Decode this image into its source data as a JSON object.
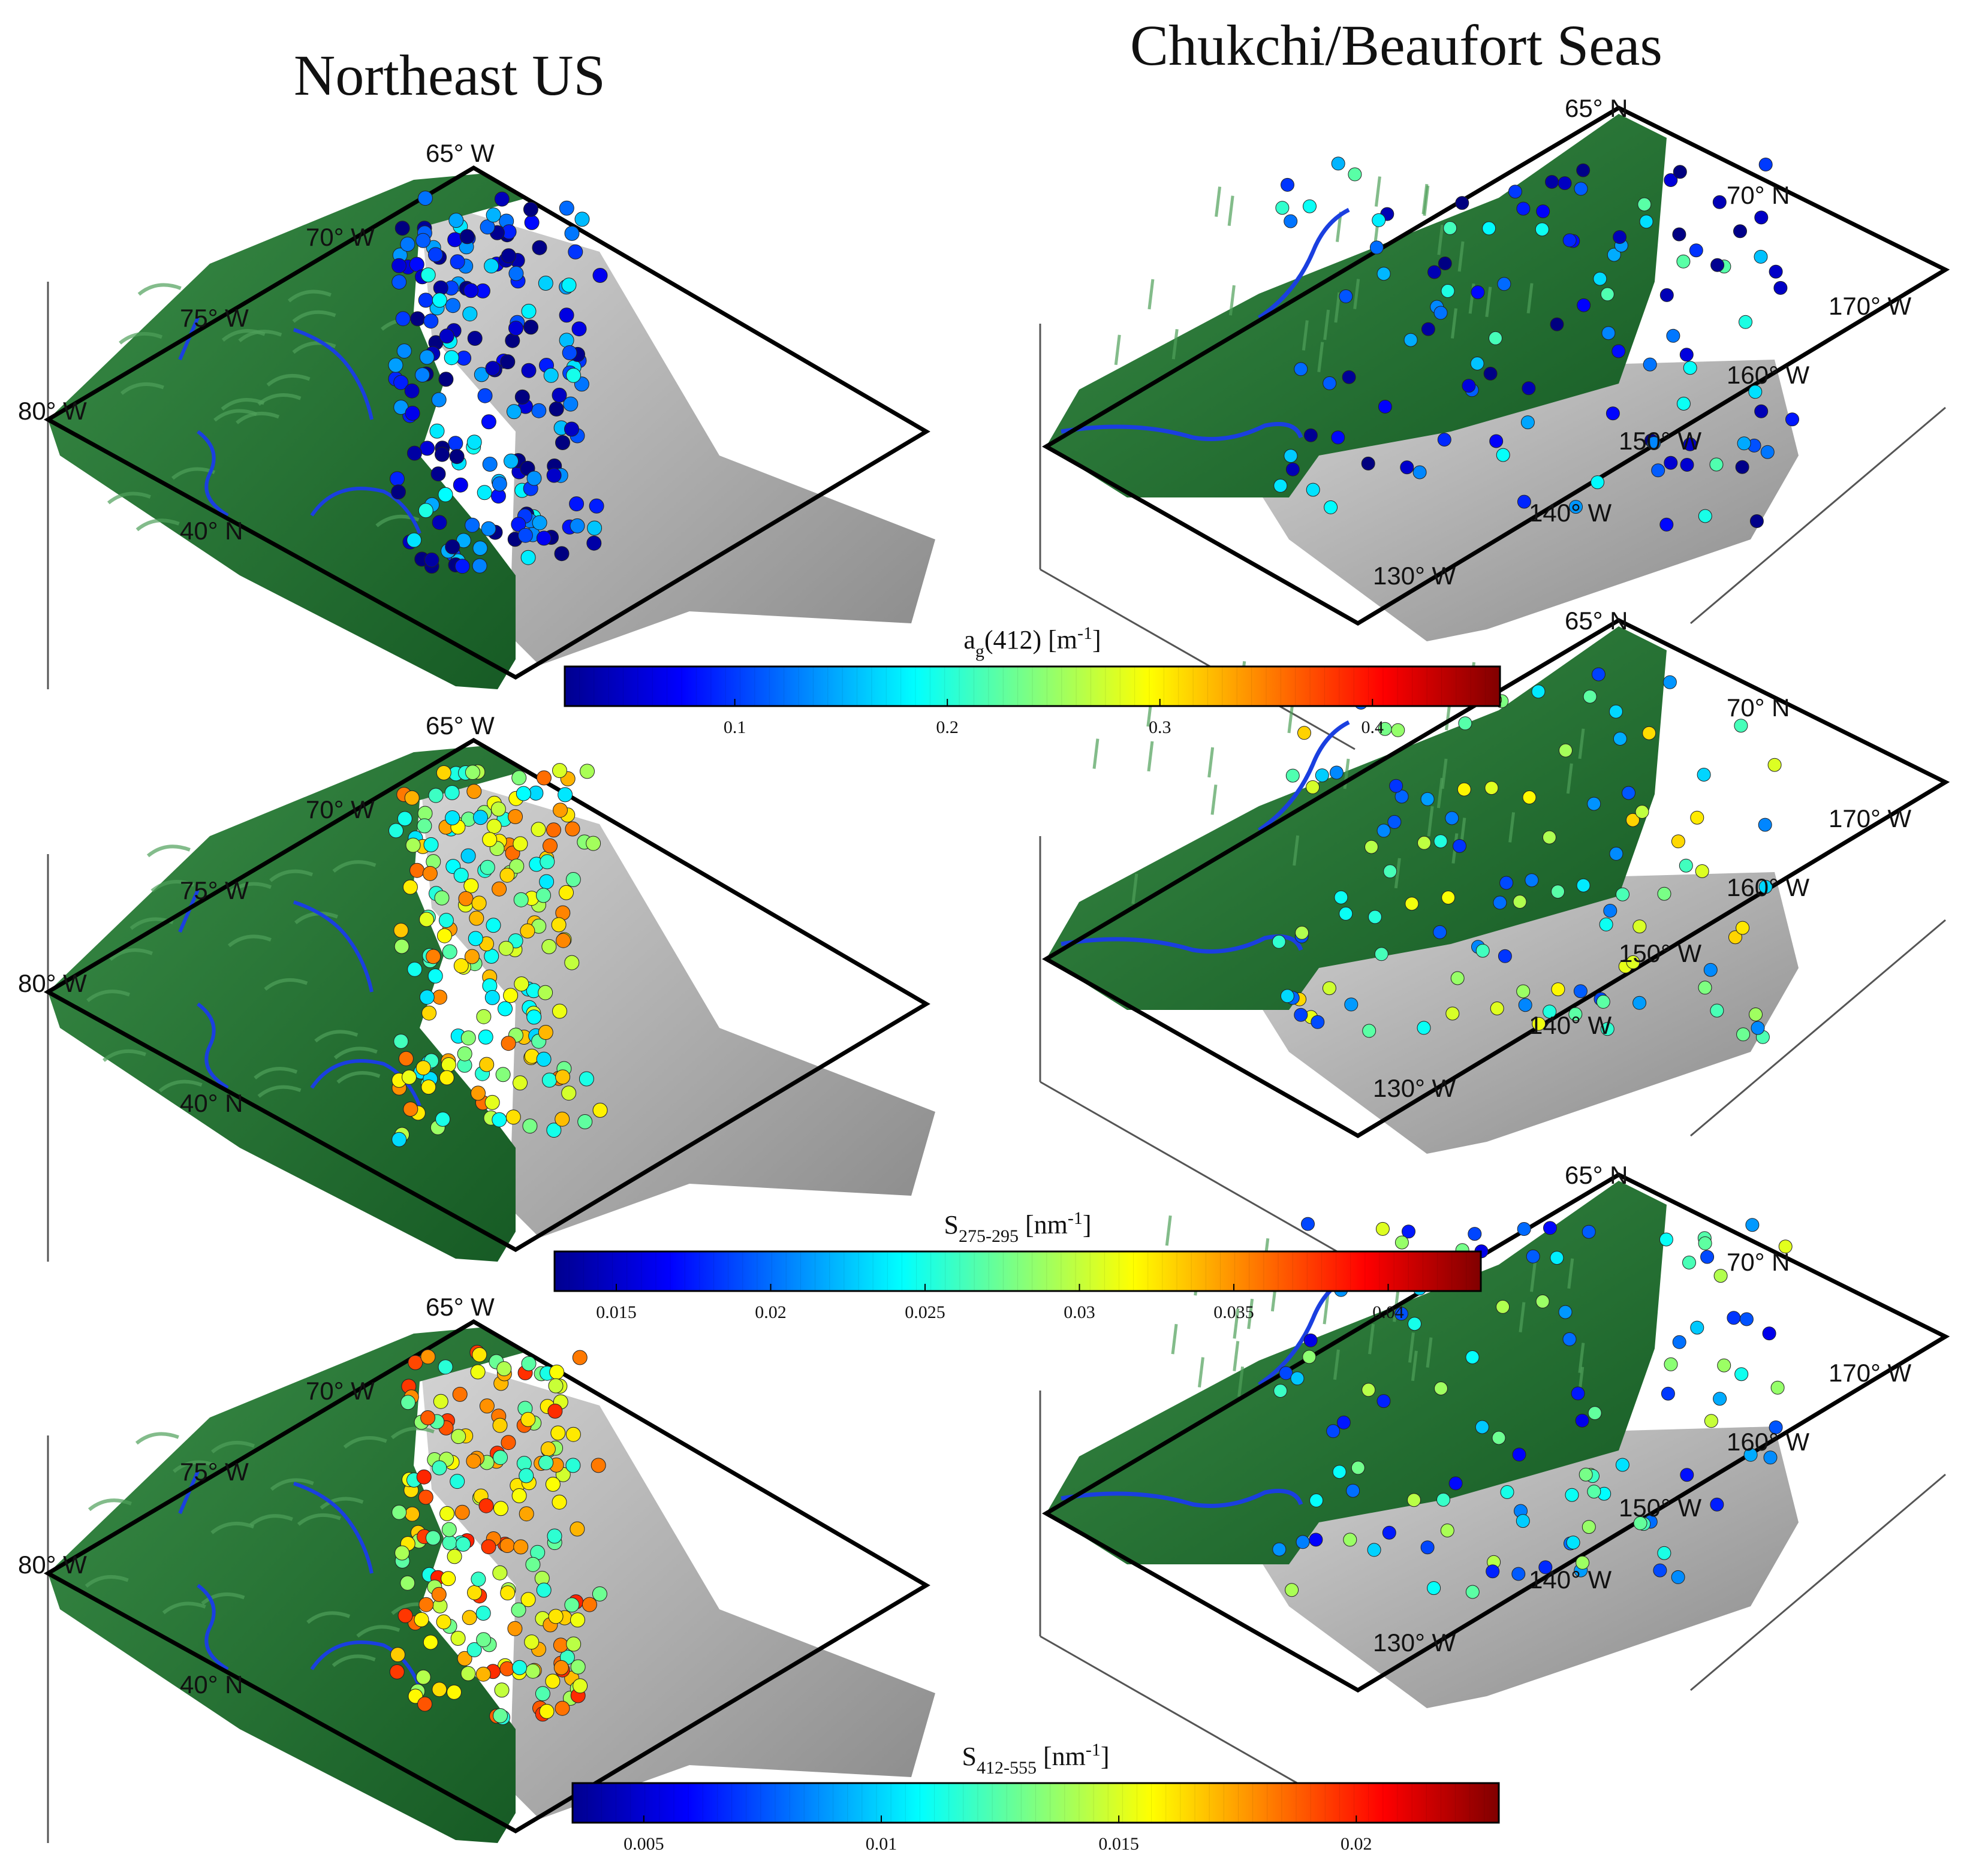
{
  "titles": {
    "left": "Northeast US",
    "right": "Chukchi/Beaufort Seas"
  },
  "panels": [
    {
      "id": "ne-1",
      "labels": [
        "65° W",
        "70° W",
        "75° W",
        "80° W",
        "40° N"
      ]
    },
    {
      "id": "ne-2",
      "labels": [
        "65° W",
        "70° W",
        "75° W",
        "80° W",
        "40° N"
      ]
    },
    {
      "id": "ne-3",
      "labels": [
        "65° W",
        "70° W",
        "75° W",
        "80° W",
        "40° N"
      ]
    },
    {
      "id": "cb-1",
      "labels": [
        "65° N",
        "70° N",
        "170° W",
        "160° W",
        "150° W",
        "140° W",
        "130° W"
      ]
    },
    {
      "id": "cb-2",
      "labels": [
        "65° N",
        "70° N",
        "170° W",
        "160° W",
        "150° W",
        "140° W",
        "130° W"
      ]
    },
    {
      "id": "cb-3",
      "labels": [
        "65° N",
        "70° N",
        "170° W",
        "160° W",
        "150° W",
        "140° W",
        "130° W"
      ]
    }
  ],
  "colorbars": [
    {
      "title": "a",
      "sub": "g",
      "rest": "(412) [m",
      "sup": "-1",
      "end": "]",
      "ticks": [
        "0.1",
        "0.2",
        "0.3",
        "0.4"
      ],
      "range": [
        0.02,
        0.46
      ],
      "tick_values": [
        0.1,
        0.2,
        0.3,
        0.4
      ]
    },
    {
      "title": "S",
      "sub": "275-295",
      "rest": " [nm",
      "sup": "-1",
      "end": "]",
      "ticks": [
        "0.015",
        "0.02",
        "0.025",
        "0.03",
        "0.035",
        "0.04"
      ],
      "range": [
        0.013,
        0.043
      ],
      "tick_values": [
        0.015,
        0.02,
        0.025,
        0.03,
        0.035,
        0.04
      ]
    },
    {
      "title": "S",
      "sub": "412-555",
      "rest": " [nm",
      "sup": "-1",
      "end": "]",
      "ticks": [
        "0.005",
        "0.01",
        "0.015",
        "0.02"
      ],
      "range": [
        0.0035,
        0.023
      ],
      "tick_values": [
        0.005,
        0.01,
        0.015,
        0.02
      ]
    }
  ],
  "colors": {
    "land": "#1f6b2e",
    "land_highlight": "#4fa05a",
    "seafloor": "#a9a9a9",
    "river": "#1a3fe0",
    "frame": "#000000"
  }
}
